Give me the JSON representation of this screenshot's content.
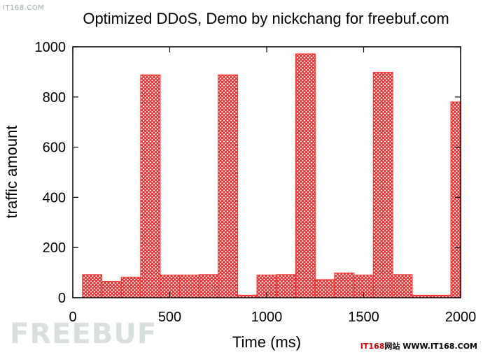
{
  "watermarks": {
    "top": "IT168.COM",
    "freebuf": "FREEBUF",
    "bottom_a": "IT168",
    "bottom_b": "网站 ",
    "bottom_c": "WWW.IT168.COM"
  },
  "chart_data": {
    "type": "bar",
    "title": "Optimized DDoS, Demo by nickchang for freebuf.com",
    "xlabel": "Time (ms)",
    "ylabel": "traffic amount",
    "xlim": [
      0,
      2000
    ],
    "ylim": [
      0,
      1000
    ],
    "xticks": [
      0,
      500,
      1000,
      1500,
      2000
    ],
    "yticks": [
      0,
      200,
      400,
      600,
      800,
      1000
    ],
    "bar_width": 100,
    "fill_color": "#ff3030",
    "fill_pattern": "crosshatch",
    "x": [
      100,
      200,
      300,
      400,
      500,
      600,
      700,
      800,
      900,
      1000,
      1100,
      1200,
      1300,
      1400,
      1500,
      1600,
      1700,
      1800,
      1900,
      2000
    ],
    "values": [
      92,
      65,
      82,
      888,
      90,
      90,
      92,
      888,
      10,
      90,
      92,
      972,
      72,
      98,
      90,
      898,
      92,
      10,
      10,
      780
    ]
  }
}
